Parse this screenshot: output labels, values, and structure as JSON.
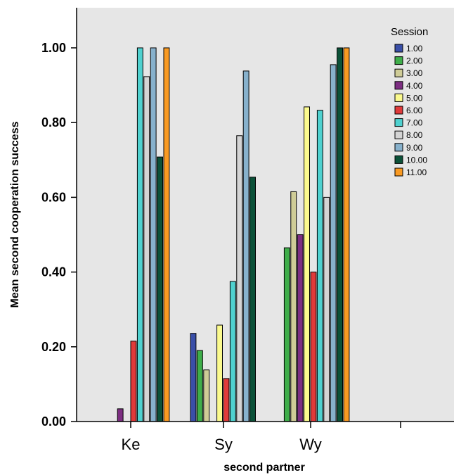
{
  "chart_data": {
    "type": "bar",
    "categories": [
      "Ke",
      "Sy",
      "Wy",
      ""
    ],
    "xlabel": "second partner",
    "ylabel": "Mean second cooperation success",
    "ylim": [
      0,
      1.1
    ],
    "yticks": [
      "0.00",
      "0.20",
      "0.40",
      "0.60",
      "0.80",
      "1.00"
    ],
    "ytick_values": [
      0,
      0.2,
      0.4,
      0.6,
      0.8,
      1.0
    ],
    "grid": false,
    "background": "#e6e6e6",
    "legend": {
      "title": "Session",
      "placement": "top-right"
    },
    "series": [
      {
        "name": "1.00",
        "color": "#3a4fa8",
        "values": [
          0,
          0.236,
          0,
          0
        ]
      },
      {
        "name": "2.00",
        "color": "#3fae4a",
        "values": [
          0,
          0.19,
          0.465,
          0
        ]
      },
      {
        "name": "3.00",
        "color": "#cfcc97",
        "values": [
          0,
          0.138,
          0.615,
          0
        ]
      },
      {
        "name": "4.00",
        "color": "#7d2e82",
        "values": [
          0.034,
          0,
          0.5,
          0
        ]
      },
      {
        "name": "5.00",
        "color": "#fbfa8e",
        "values": [
          0,
          0.258,
          0.842,
          0
        ]
      },
      {
        "name": "6.00",
        "color": "#e03a3a",
        "values": [
          0.215,
          0.115,
          0.4,
          0
        ]
      },
      {
        "name": "7.00",
        "color": "#4fd1cf",
        "values": [
          1.0,
          0.375,
          0.833,
          0
        ]
      },
      {
        "name": "8.00",
        "color": "#d4d4d4",
        "values": [
          0.923,
          0.765,
          0.6,
          0
        ]
      },
      {
        "name": "9.00",
        "color": "#87b1cc",
        "values": [
          1.0,
          0.938,
          0.955,
          0
        ]
      },
      {
        "name": "10.00",
        "color": "#0b5138",
        "values": [
          0.708,
          0.654,
          1.0,
          0
        ]
      },
      {
        "name": "11.00",
        "color": "#f99a22",
        "values": [
          1.0,
          0,
          1.0,
          0
        ]
      }
    ]
  }
}
